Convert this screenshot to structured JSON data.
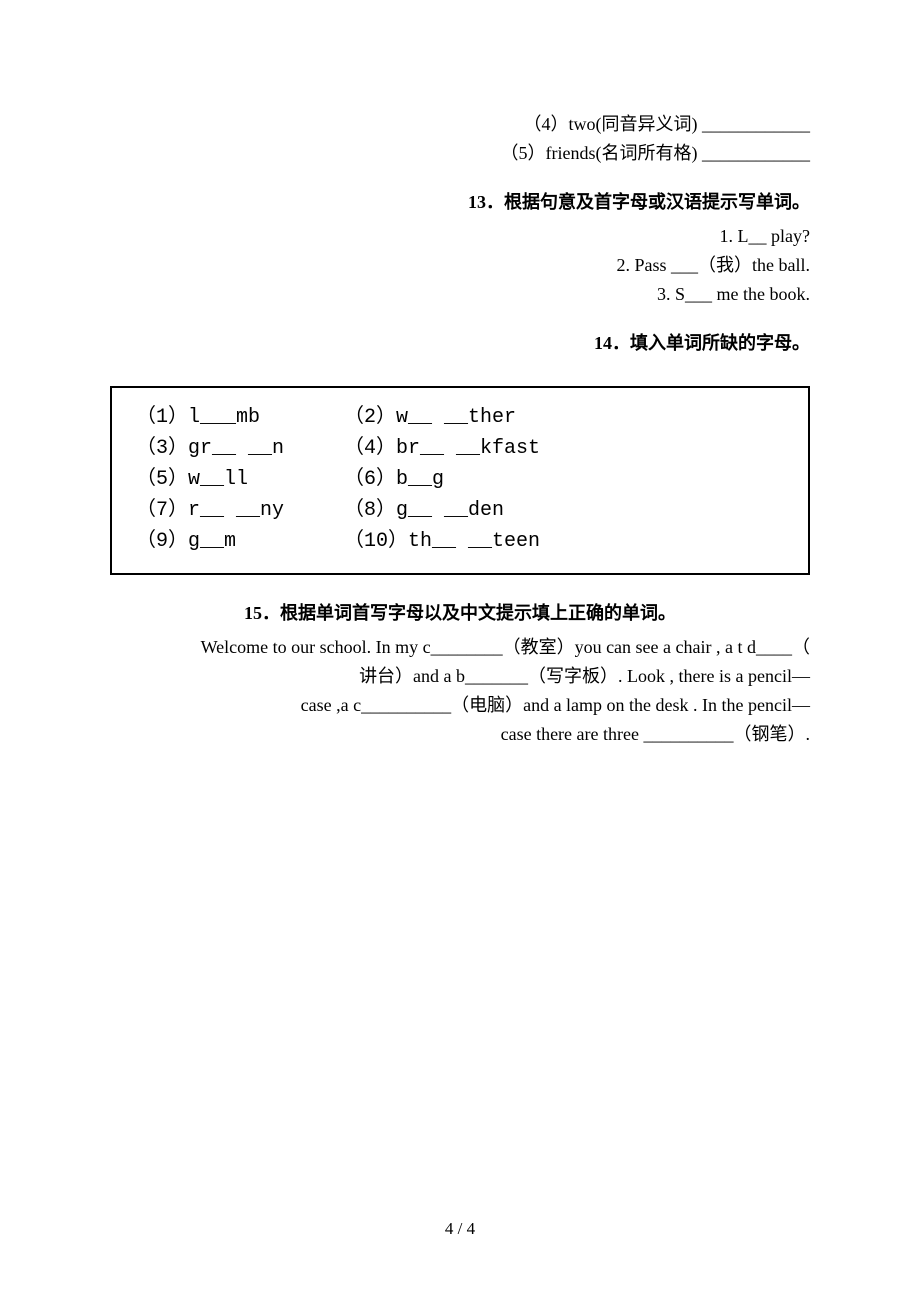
{
  "top": {
    "line4": "（4）two(同音异义词) ____________",
    "line5": "（5）friends(名词所有格) ____________"
  },
  "q13": {
    "heading": "13．根据句意及首字母或汉语提示写单词。",
    "l1": "1. L__ play?",
    "l2": "2. Pass ___（我）the ball.",
    "l3": "3. S___ me the book."
  },
  "q14": {
    "heading": "14．填入单词所缺的字母。",
    "row1": "（1）l___mb       （2）w__ __ther",
    "row2": "（3）gr__ __n     （4）br__ __kfast",
    "row3": "（5）w__ll        （6）b__g",
    "row4": "（7）r__ __ny     （8）g__ __den",
    "row5": "（9）g__m         （10）th__ __teen"
  },
  "q15": {
    "heading": "15．根据单词首写字母以及中文提示填上正确的单词。",
    "l1": "Welcome to our school. In my c________（教室）you can see a chair , a t d____（",
    "l2": "讲台）and a b_______（写字板）. Look , there is a pencil—",
    "l3": "case ,a c__________（电脑）and a lamp on the desk . In the pencil—",
    "l4": "case there are three __________（钢笔）."
  },
  "footer": "4 / 4"
}
